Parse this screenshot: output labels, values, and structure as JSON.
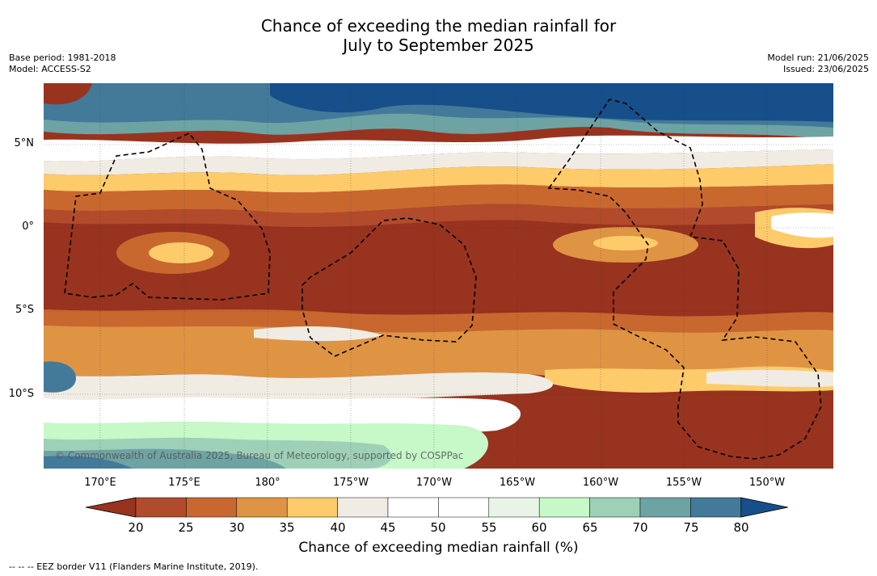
{
  "title": {
    "line1": "Chance of exceeding the median rainfall for",
    "line2": "July to September 2025"
  },
  "meta_left": {
    "base_period": "Base period: 1981-2018",
    "model": "Model: ACCESS-S2"
  },
  "meta_right": {
    "model_run": "Model run: 21/06/2025",
    "issued": "Issued: 23/06/2025"
  },
  "map": {
    "copyright": "© Commonwealth of Australia 2025, Bureau of Meteorology, supported by COSPPac",
    "lat_labels": [
      "5°N",
      "0°",
      "5°S",
      "10°S"
    ],
    "lon_labels": [
      "170°E",
      "175°E",
      "180°",
      "175°W",
      "170°W",
      "165°W",
      "160°W",
      "155°W",
      "150°W"
    ]
  },
  "colorbar": {
    "title": "Chance of exceeding median rainfall (%)",
    "ticks": [
      "20",
      "25",
      "30",
      "35",
      "40",
      "45",
      "50",
      "55",
      "60",
      "65",
      "70",
      "75",
      "80"
    ],
    "colors": [
      "#98331f",
      "#b14b2c",
      "#c8682f",
      "#df9444",
      "#fdcb6a",
      "#f0ece4",
      "#ffffff",
      "#ffffff",
      "#e8f4e6",
      "#c6f8c8",
      "#9ed0b8",
      "#6ea3a4",
      "#437a9a",
      "#174f8a"
    ]
  },
  "footnote": "--  --  -- EEZ border V11 (Flanders Marine Institute, 2019)."
}
